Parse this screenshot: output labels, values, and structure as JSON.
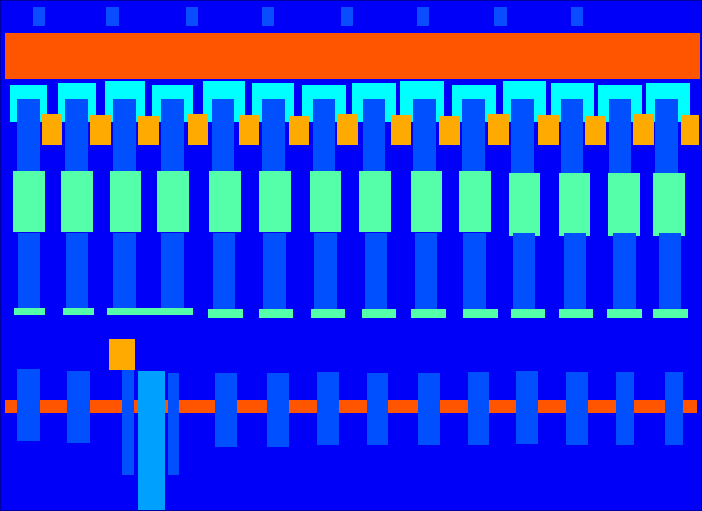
{
  "colors": {
    "background": "#0000f8",
    "band": "#ff5500",
    "cap": "#00ffff",
    "pillar": "#0050ff",
    "accent_square": "#ffaa00",
    "block": "#55ffaa",
    "highlight_pillar": "#00a0ff",
    "marker": "#0a4cff"
  }
}
